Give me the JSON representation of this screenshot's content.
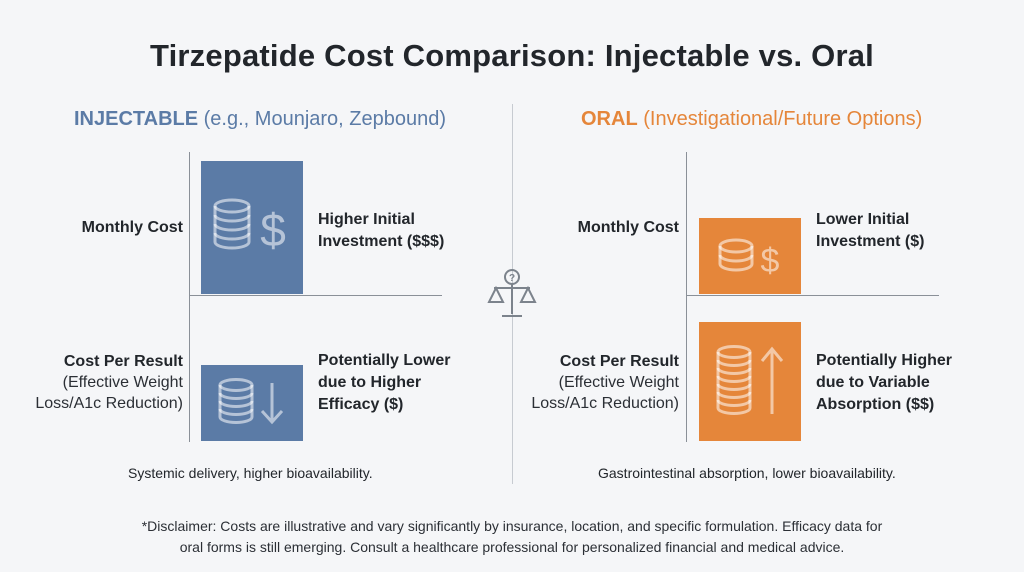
{
  "title": "Tirzepatide Cost Comparison: Injectable vs. Oral",
  "injectable": {
    "heading_strong": "INJECTABLE",
    "heading_rest": " (e.g., Mounjaro, Zepbound)",
    "color": "#5b7ba6",
    "rows": {
      "monthly": {
        "label": "Monthly Cost",
        "value_line1": "Higher Initial",
        "value_line2": "Investment ($$$)",
        "icon": "coin-stack-dollar-icon"
      },
      "per_result": {
        "label": "Cost Per Result",
        "sub_line1": "(Effective Weight",
        "sub_line2": "Loss/A1c Reduction)",
        "value_line1": "Potentially Lower",
        "value_line2": "due to Higher",
        "value_line3": "Efficacy ($)",
        "icon": "coin-stack-down-arrow-icon"
      }
    },
    "caption": "Systemic delivery, higher bioavailability."
  },
  "oral": {
    "heading_strong": "ORAL",
    "heading_rest": " (Investigational/Future Options)",
    "color": "#e5863a",
    "rows": {
      "monthly": {
        "label": "Monthly Cost",
        "value_line1": "Lower Initial",
        "value_line2": "Investment ($)",
        "icon": "coin-stack-dollar-icon"
      },
      "per_result": {
        "label": "Cost Per Result",
        "sub_line1": "(Effective Weight",
        "sub_line2": "Loss/A1c Reduction)",
        "value_line1": "Potentially Higher",
        "value_line2": "due to Variable",
        "value_line3": "Absorption ($$)",
        "icon": "coin-stack-up-arrow-icon"
      }
    },
    "caption": "Gastrointestinal absorption, lower bioavailability."
  },
  "center_icon": "balance-scale-question-icon",
  "disclaimer_line1": "*Disclaimer: Costs are illustrative and vary significantly by insurance, location, and specific formulation. Efficacy data for",
  "disclaimer_line2": "oral forms is still emerging. Consult a healthcare professional for personalized financial and medical advice."
}
